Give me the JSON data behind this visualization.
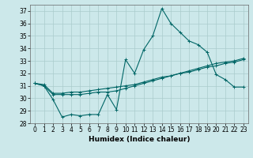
{
  "title": "",
  "xlabel": "Humidex (Indice chaleur)",
  "xlim": [
    -0.5,
    23.5
  ],
  "ylim": [
    28,
    37.5
  ],
  "yticks": [
    28,
    29,
    30,
    31,
    32,
    33,
    34,
    35,
    36,
    37
  ],
  "xticks": [
    0,
    1,
    2,
    3,
    4,
    5,
    6,
    7,
    8,
    9,
    10,
    11,
    12,
    13,
    14,
    15,
    16,
    17,
    18,
    19,
    20,
    21,
    22,
    23
  ],
  "bg_color": "#cce8ea",
  "grid_color": "#aacccc",
  "line_color": "#006666",
  "line1_x": [
    0,
    1,
    2,
    3,
    4,
    5,
    6,
    7,
    8,
    9,
    10,
    11,
    12,
    13,
    14,
    15,
    16,
    17,
    18,
    19,
    20,
    21,
    22,
    23
  ],
  "line1_y": [
    31.2,
    31.0,
    29.9,
    28.5,
    28.7,
    28.6,
    28.7,
    28.7,
    30.3,
    29.1,
    33.1,
    32.0,
    33.9,
    35.0,
    37.2,
    36.0,
    35.3,
    34.6,
    34.3,
    33.7,
    31.9,
    31.5,
    30.9,
    30.9
  ],
  "line2_x": [
    0,
    1,
    2,
    3,
    4,
    5,
    6,
    7,
    8,
    9,
    10,
    11,
    12,
    13,
    14,
    15,
    16,
    17,
    18,
    19,
    20,
    21,
    22,
    23
  ],
  "line2_y": [
    31.2,
    31.1,
    30.4,
    30.4,
    30.5,
    30.5,
    30.6,
    30.7,
    30.8,
    30.9,
    31.0,
    31.1,
    31.3,
    31.5,
    31.7,
    31.8,
    32.0,
    32.1,
    32.3,
    32.5,
    32.6,
    32.8,
    32.9,
    33.1
  ],
  "line3_x": [
    0,
    1,
    2,
    3,
    4,
    5,
    6,
    7,
    8,
    9,
    10,
    11,
    12,
    13,
    14,
    15,
    16,
    17,
    18,
    19,
    20,
    21,
    22,
    23
  ],
  "line3_y": [
    31.2,
    31.0,
    30.3,
    30.3,
    30.3,
    30.3,
    30.4,
    30.5,
    30.5,
    30.6,
    30.8,
    31.0,
    31.2,
    31.4,
    31.6,
    31.8,
    32.0,
    32.2,
    32.4,
    32.6,
    32.8,
    32.9,
    33.0,
    33.2
  ],
  "tick_fontsize": 5.5,
  "label_fontsize": 6.5
}
